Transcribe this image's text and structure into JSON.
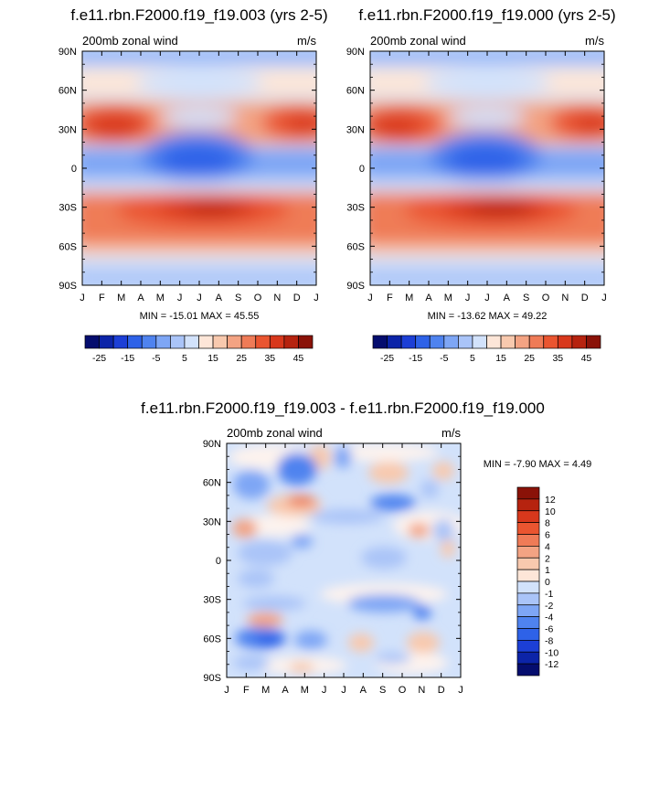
{
  "chart_data": [
    {
      "type": "heatmap",
      "title": "f.e11.rbn.F2000.f19_f19.003 (yrs 2-5)",
      "left_label": "200mb zonal wind",
      "right_label": "m/s",
      "x_ticks": [
        "J",
        "F",
        "M",
        "A",
        "M",
        "J",
        "J",
        "A",
        "S",
        "O",
        "N",
        "D",
        "J"
      ],
      "y_ticks": [
        "90N",
        "60N",
        "30N",
        "0",
        "30S",
        "60S",
        "90S"
      ],
      "stats": "MIN = -15.01 MAX =  45.55",
      "colorbar": {
        "levels": [
          "-25",
          "-15",
          "-5",
          "5",
          "15",
          "25",
          "35",
          "45"
        ],
        "colors": [
          "#050d6e",
          "#0c24a8",
          "#1c3fd6",
          "#2e62e8",
          "#4f83ef",
          "#7ea6f5",
          "#aac4f8",
          "#d2e2fb",
          "#fde6d8",
          "#f8c9ae",
          "#f3a383",
          "#ef7b57",
          "#ea5530",
          "#d8381c",
          "#b6230f",
          "#8a1208"
        ]
      }
    },
    {
      "type": "heatmap",
      "title": "f.e11.rbn.F2000.f19_f19.000 (yrs 2-5)",
      "left_label": "200mb zonal wind",
      "right_label": "m/s",
      "x_ticks": [
        "J",
        "F",
        "M",
        "A",
        "M",
        "J",
        "J",
        "A",
        "S",
        "O",
        "N",
        "D",
        "J"
      ],
      "y_ticks": [
        "90N",
        "60N",
        "30N",
        "0",
        "30S",
        "60S",
        "90S"
      ],
      "stats": "MIN = -13.62 MAX =  49.22",
      "colorbar": {
        "levels": [
          "-25",
          "-15",
          "-5",
          "5",
          "15",
          "25",
          "35",
          "45"
        ],
        "colors": [
          "#050d6e",
          "#0c24a8",
          "#1c3fd6",
          "#2e62e8",
          "#4f83ef",
          "#7ea6f5",
          "#aac4f8",
          "#d2e2fb",
          "#fde6d8",
          "#f8c9ae",
          "#f3a383",
          "#ef7b57",
          "#ea5530",
          "#d8381c",
          "#b6230f",
          "#8a1208"
        ]
      }
    },
    {
      "type": "heatmap",
      "title": "f.e11.rbn.F2000.f19_f19.003 - f.e11.rbn.F2000.f19_f19.000",
      "left_label": "200mb zonal wind",
      "right_label": "m/s",
      "x_ticks": [
        "J",
        "F",
        "M",
        "A",
        "M",
        "J",
        "J",
        "A",
        "S",
        "O",
        "N",
        "D",
        "J"
      ],
      "y_ticks": [
        "90N",
        "60N",
        "30N",
        "0",
        "30S",
        "60S",
        "90S"
      ],
      "stats": "MIN =  -7.90 MAX =   4.49",
      "colorbar": {
        "levels": [
          "12",
          "10",
          "8",
          "6",
          "4",
          "2",
          "1",
          "0",
          "-1",
          "-2",
          "-4",
          "-6",
          "-8",
          "-10",
          "-12"
        ],
        "colors": [
          "#8a1208",
          "#b6230f",
          "#d8381c",
          "#ea5530",
          "#ef7b57",
          "#f3a383",
          "#f8c9ae",
          "#fde6d8",
          "#d2e2fb",
          "#aac4f8",
          "#7ea6f5",
          "#4f83ef",
          "#2e62e8",
          "#1c3fd6",
          "#0c24a8",
          "#050d6e"
        ]
      }
    }
  ]
}
